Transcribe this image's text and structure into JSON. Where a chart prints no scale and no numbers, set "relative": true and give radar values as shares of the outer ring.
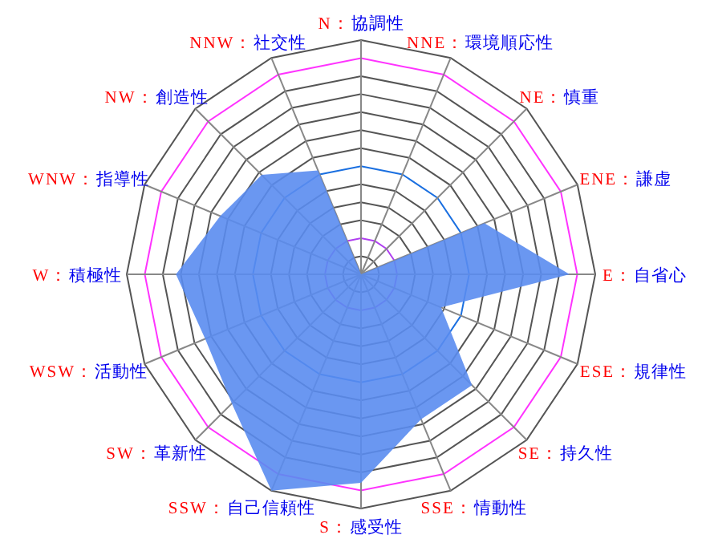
{
  "chart_data": {
    "type": "radar",
    "relative": true,
    "grid": true,
    "categories": [
      "N：協調性",
      "NNE：環境順応性",
      "NE：慎重",
      "ENE：謙虚",
      "E：自省心",
      "ESE：規律性",
      "SE：持久性",
      "SSE：情動性",
      "S：感受性",
      "SSW：自己信頼性",
      "SW：革新性",
      "WSW：活動性",
      "W：積極性",
      "WNW：指導性",
      "NW：創造性",
      "NNW：社交性"
    ],
    "series": [
      {
        "color": "#5a8cf0",
        "values": [
          0,
          0,
          0,
          0.57,
          0.89,
          0.37,
          0.67,
          0.67,
          0.89,
          1.0,
          0.78,
          0.72,
          0.79,
          0.65,
          0.6,
          0.48
        ]
      }
    ]
  }
}
